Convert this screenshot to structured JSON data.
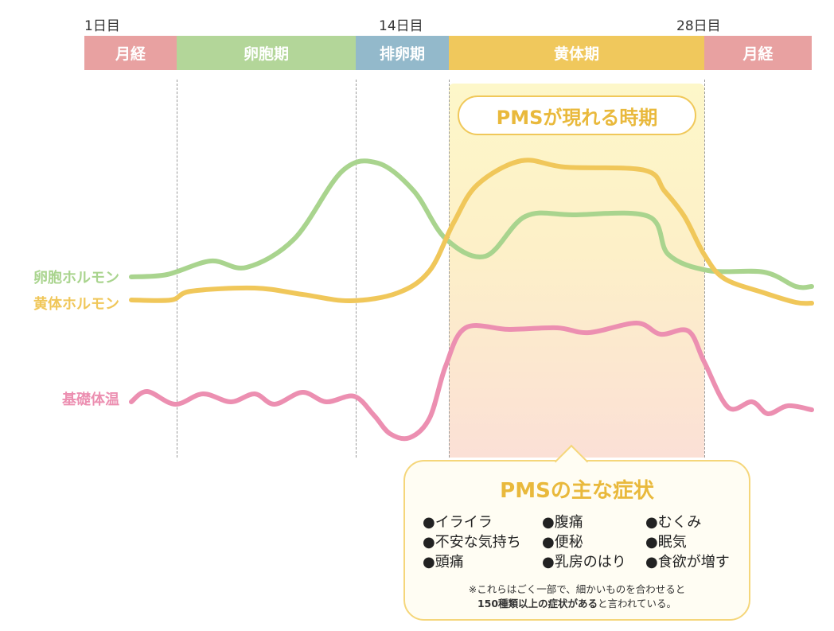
{
  "day_labels": [
    "1日目",
    "14日目",
    "28日目"
  ],
  "phases": [
    {
      "label": "月経",
      "color": "#e8a1a1"
    },
    {
      "label": "卵胞期",
      "color": "#b3d699"
    },
    {
      "label": "排卵期",
      "color": "#93b9cb"
    },
    {
      "label": "黄体期",
      "color": "#f0c85c"
    },
    {
      "label": "月経",
      "color": "#e8a1a1"
    }
  ],
  "pms_period_label": "PMSが現れる時期",
  "series": [
    {
      "name": "卵胞ホルモン",
      "color": "#a9d48e"
    },
    {
      "name": "黄体ホルモン",
      "color": "#f0c75a"
    },
    {
      "name": "基礎体温",
      "color": "#ec8fb1"
    }
  ],
  "symptoms": {
    "title": "PMSの主な症状",
    "columns": [
      [
        "●イライラ",
        "●不安な気持ち",
        "●頭痛"
      ],
      [
        "●腹痛",
        "●便秘",
        "●乳房のはり"
      ],
      [
        "●むくみ",
        "●眠気",
        "●食欲が増す"
      ]
    ],
    "note_line1": "※これらはごく一部で、細かいものを合わせると",
    "note_bold": "150種類以上の症状がある",
    "note_line2_rest": "と言われている。"
  }
}
